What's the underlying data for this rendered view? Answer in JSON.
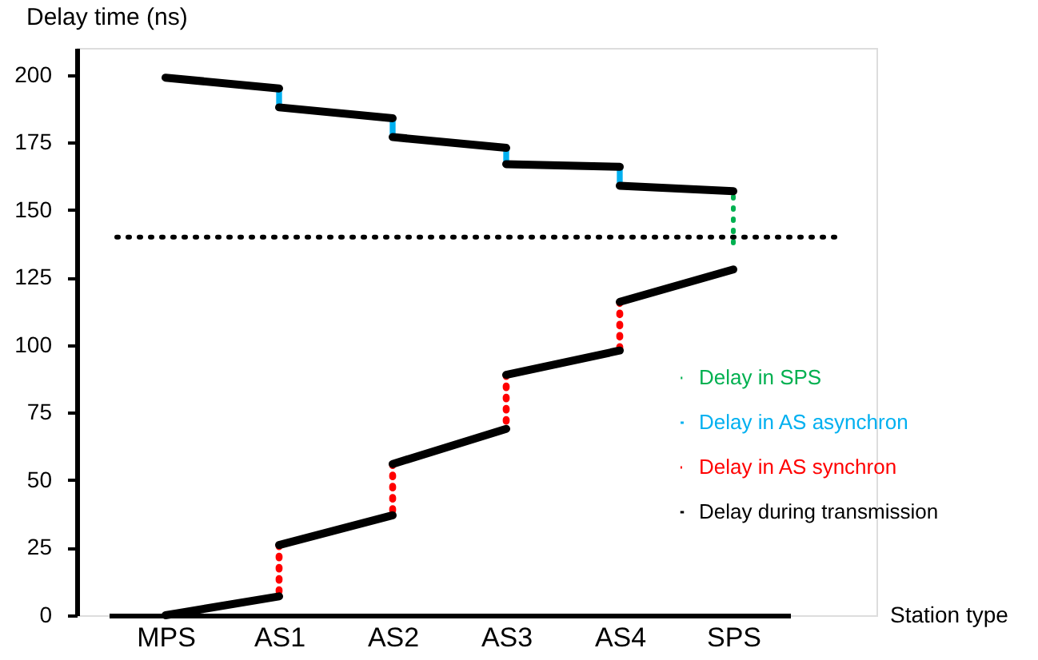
{
  "chart_data": {
    "type": "line",
    "xlabel": "Station type",
    "ylabel": "Delay time (ns)",
    "categories": [
      "MPS",
      "AS1",
      "AS2",
      "AS3",
      "AS4",
      "SPS"
    ],
    "ylim": [
      0,
      210
    ],
    "yticks": [
      0,
      25,
      50,
      75,
      100,
      125,
      150,
      175,
      200
    ],
    "grid": false,
    "legend": "bottom right",
    "marker": "none",
    "ref_lines": [
      {
        "axis": "y",
        "value": 140,
        "color": "#000000",
        "line_style": "dotted"
      }
    ],
    "series": [
      {
        "name": "Delay in SPS",
        "color": "#00b050",
        "line_style": "dotted",
        "x": [
          "SPS",
          "SPS"
        ],
        "values": [
          155,
          135
        ]
      },
      {
        "name": "Delay in AS asynchron",
        "color": "#00b0f0",
        "line_style": "solid",
        "x": [
          "AS1",
          "AS1"
        ],
        "values": [
          195,
          188
        ]
      },
      {
        "color": "#00b0f0",
        "line_style": "solid",
        "x": [
          "AS2",
          "AS2"
        ],
        "values": [
          184,
          177
        ]
      },
      {
        "color": "#00b0f0",
        "line_style": "solid",
        "x": [
          "AS3",
          "AS3"
        ],
        "values": [
          173,
          167
        ]
      },
      {
        "color": "#00b0f0",
        "line_style": "solid",
        "x": [
          "AS4",
          "AS4"
        ],
        "values": [
          166,
          159
        ]
      },
      {
        "name": "Delay in AS synchron",
        "color": "#ff0000",
        "line_style": "dotted",
        "x": [
          "AS1",
          "AS1"
        ],
        "values": [
          26,
          7
        ]
      },
      {
        "color": "#ff0000",
        "line_style": "dotted",
        "x": [
          "AS2",
          "AS2"
        ],
        "values": [
          56,
          37
        ]
      },
      {
        "color": "#ff0000",
        "line_style": "dotted",
        "x": [
          "AS3",
          "AS3"
        ],
        "values": [
          89,
          69
        ]
      },
      {
        "color": "#ff0000",
        "line_style": "dotted",
        "x": [
          "AS4",
          "AS4"
        ],
        "values": [
          116,
          98
        ]
      },
      {
        "name": "Delay during transmission",
        "color": "#000000",
        "line_style": "solid",
        "x": [
          "MPS",
          "AS1"
        ],
        "values": [
          199,
          195
        ]
      },
      {
        "color": "#000000",
        "line_style": "solid",
        "x": [
          "AS1",
          "AS2"
        ],
        "values": [
          188,
          184
        ]
      },
      {
        "color": "#000000",
        "line_style": "solid",
        "x": [
          "AS2",
          "AS3"
        ],
        "values": [
          177,
          173
        ]
      },
      {
        "color": "#000000",
        "line_style": "solid",
        "x": [
          "AS3",
          "AS4"
        ],
        "values": [
          167,
          166
        ]
      },
      {
        "color": "#000000",
        "line_style": "solid",
        "x": [
          "AS4",
          "SPS"
        ],
        "values": [
          159,
          157
        ]
      },
      {
        "color": "#000000",
        "line_style": "solid",
        "x": [
          "MPS",
          "AS1"
        ],
        "values": [
          0,
          7
        ]
      },
      {
        "color": "#000000",
        "line_style": "solid",
        "x": [
          "AS1",
          "AS2"
        ],
        "values": [
          26,
          37
        ]
      },
      {
        "color": "#000000",
        "line_style": "solid",
        "x": [
          "AS2",
          "AS3"
        ],
        "values": [
          56,
          69
        ]
      },
      {
        "color": "#000000",
        "line_style": "solid",
        "x": [
          "AS3",
          "AS4"
        ],
        "values": [
          89,
          98
        ]
      },
      {
        "color": "#000000",
        "line_style": "solid",
        "x": [
          "AS4",
          "SPS"
        ],
        "values": [
          116,
          128
        ]
      }
    ]
  }
}
